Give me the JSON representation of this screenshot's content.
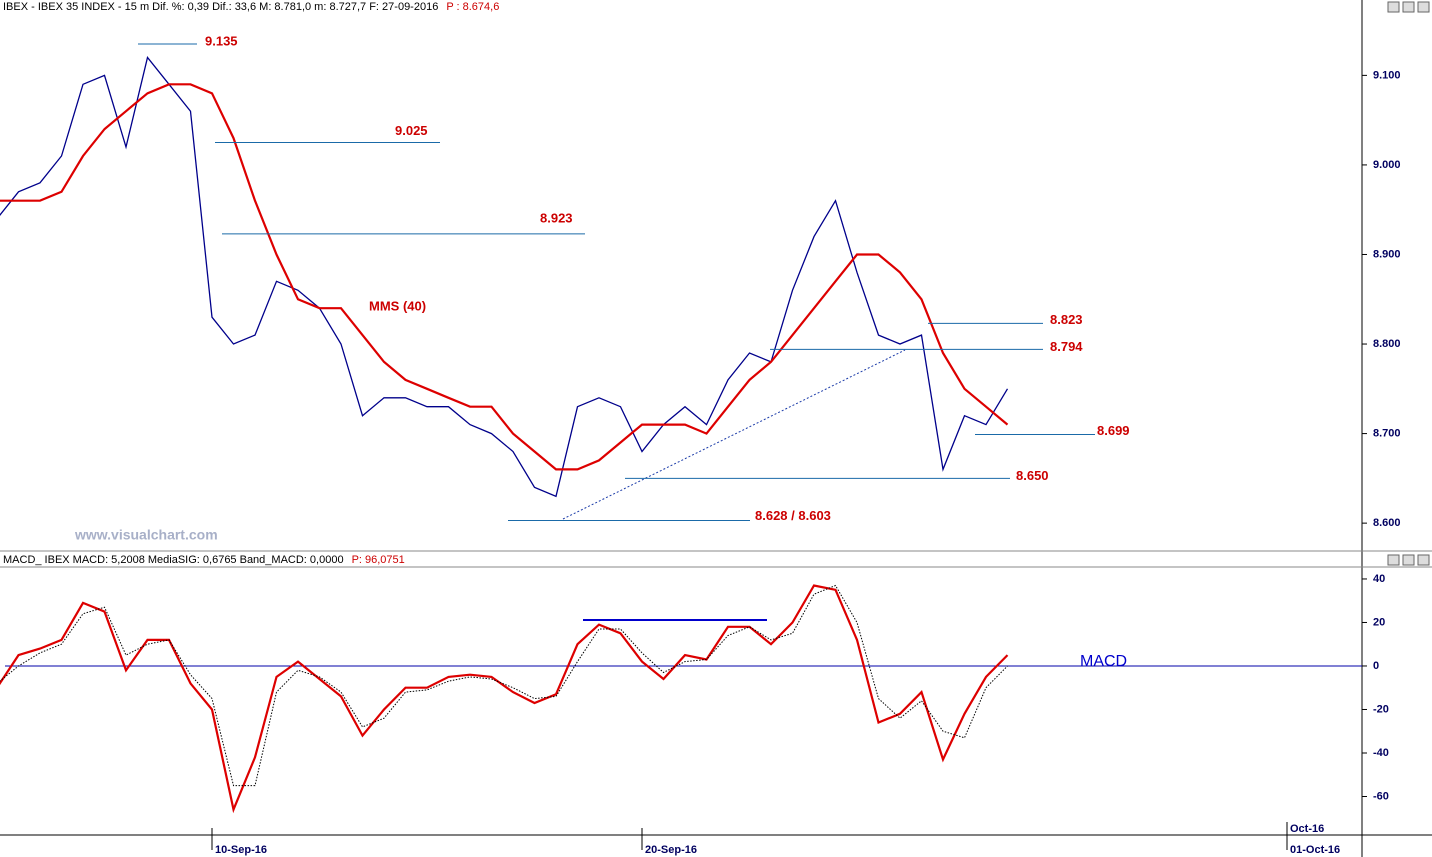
{
  "chart_data": [
    {
      "type": "line",
      "title": "IBEX - IBEX 35 INDEX - 15 m  Dif. %: 0,39  Dif.: 33,6  M: 8.781,0  m: 8.727,7  F: 27-09-2016",
      "title_value": "P : 8.674,6",
      "watermark": "www.visualchart.com",
      "ylim": [
        8.57,
        9.173
      ],
      "yticks": [
        {
          "value": 8.6,
          "label": "8.600"
        },
        {
          "value": 8.7,
          "label": "8.700"
        },
        {
          "value": 8.8,
          "label": "8.800"
        },
        {
          "value": 8.9,
          "label": "8.900"
        },
        {
          "value": 9.0,
          "label": "9.000"
        },
        {
          "value": 9.1,
          "label": "9.100"
        }
      ],
      "series": [
        {
          "color": "#00008b",
          "values": [
            8.94,
            8.97,
            8.98,
            9.01,
            9.09,
            9.1,
            9.02,
            9.12,
            9.09,
            9.06,
            8.83,
            8.8,
            8.81,
            8.87,
            8.86,
            8.84,
            8.8,
            8.72,
            8.74,
            8.74,
            8.73,
            8.73,
            8.71,
            8.7,
            8.68,
            8.64,
            8.63,
            8.73,
            8.74,
            8.73,
            8.68,
            8.71,
            8.73,
            8.71,
            8.76,
            8.79,
            8.78,
            8.86,
            8.92,
            8.96,
            8.88,
            8.81,
            8.8,
            8.81,
            8.66,
            8.72,
            8.71,
            8.75,
            null,
            null,
            null,
            null,
            null,
            null,
            null,
            null,
            null,
            null,
            null,
            null,
            null
          ]
        },
        {
          "name": "MMS (40)",
          "color": "#dd0000",
          "values": [
            8.96,
            8.96,
            8.96,
            8.97,
            9.01,
            9.04,
            9.06,
            9.08,
            9.09,
            9.09,
            9.08,
            9.03,
            8.96,
            8.9,
            8.85,
            8.84,
            8.84,
            8.81,
            8.78,
            8.76,
            8.75,
            8.74,
            8.73,
            8.73,
            8.7,
            8.68,
            8.66,
            8.66,
            8.67,
            8.69,
            8.71,
            8.71,
            8.71,
            8.7,
            8.73,
            8.76,
            8.78,
            8.81,
            8.84,
            8.87,
            8.9,
            8.9,
            8.88,
            8.85,
            8.79,
            8.75,
            8.73,
            8.71,
            null,
            null,
            null,
            null,
            null,
            null,
            null,
            null,
            null,
            null,
            null,
            null,
            null
          ]
        }
      ],
      "annotations": [
        {
          "value": 9.135,
          "label": "9.135"
        },
        {
          "value": 9.025,
          "label": "9.025"
        },
        {
          "value": 8.923,
          "label": "8.923"
        },
        {
          "value": 8.823,
          "label": "8.823"
        },
        {
          "value": 8.794,
          "label": "8.794"
        },
        {
          "value": 8.699,
          "label": "8.699"
        },
        {
          "value": 8.65,
          "label": "8.650"
        },
        {
          "value": 8.603,
          "label": "8.628 / 8.603"
        }
      ]
    },
    {
      "type": "line",
      "title": "MACD_ IBEX MACD: 5,2008  MediaSIG: 0,6765  Band_MACD: 0,0000",
      "title_value": "P: 96,0751",
      "ylim": [
        -77.7,
        45.5
      ],
      "yticks": [
        -60,
        -40,
        -20,
        0,
        20,
        40
      ],
      "categories": [
        null,
        null,
        null,
        null,
        null,
        null,
        null,
        null,
        null,
        null,
        "10-Sep-16",
        null,
        null,
        null,
        null,
        null,
        null,
        null,
        null,
        null,
        null,
        null,
        null,
        null,
        null,
        null,
        null,
        null,
        null,
        null,
        "20-Sep-16",
        null,
        null,
        null,
        null,
        null,
        null,
        null,
        null,
        null,
        null,
        null,
        null,
        null,
        null,
        null,
        null,
        null,
        null,
        null,
        null,
        null,
        null,
        null,
        null,
        null,
        null,
        null,
        null,
        null,
        "01-Oct-16"
      ],
      "x_month_label": "Oct-16",
      "series": [
        {
          "name": "MACD",
          "color": "#dd0000",
          "values": [
            -10,
            5,
            8,
            12,
            29,
            25,
            -2,
            12,
            12,
            -8,
            -20,
            -66,
            -42,
            -5,
            2,
            -6,
            -14,
            -32,
            -20,
            -10,
            -10,
            -5,
            -4,
            -5,
            -12,
            -17,
            -13,
            10,
            19,
            15,
            2,
            -6,
            5,
            3,
            18,
            18,
            10,
            20,
            37,
            35,
            12,
            -26,
            -22,
            -12,
            -43,
            -22,
            -5,
            5,
            null,
            null,
            null,
            null,
            null,
            null,
            null,
            null,
            null,
            null,
            null,
            null,
            null
          ]
        },
        {
          "color": "#000000",
          "dotted": true,
          "values": [
            -8,
            0,
            6,
            10,
            24,
            27,
            5,
            10,
            12,
            -4,
            -15,
            -55,
            -55,
            -12,
            -2,
            -5,
            -12,
            -28,
            -24,
            -12,
            -11,
            -7,
            -5,
            -6,
            -10,
            -15,
            -14,
            2,
            17,
            17,
            6,
            -3,
            2,
            3,
            14,
            18,
            12,
            15,
            33,
            37,
            20,
            -15,
            -24,
            -16,
            -30,
            -33,
            -10,
            0,
            null,
            null,
            null,
            null,
            null,
            null,
            null,
            null,
            null,
            null,
            null,
            null,
            null
          ]
        }
      ]
    }
  ]
}
